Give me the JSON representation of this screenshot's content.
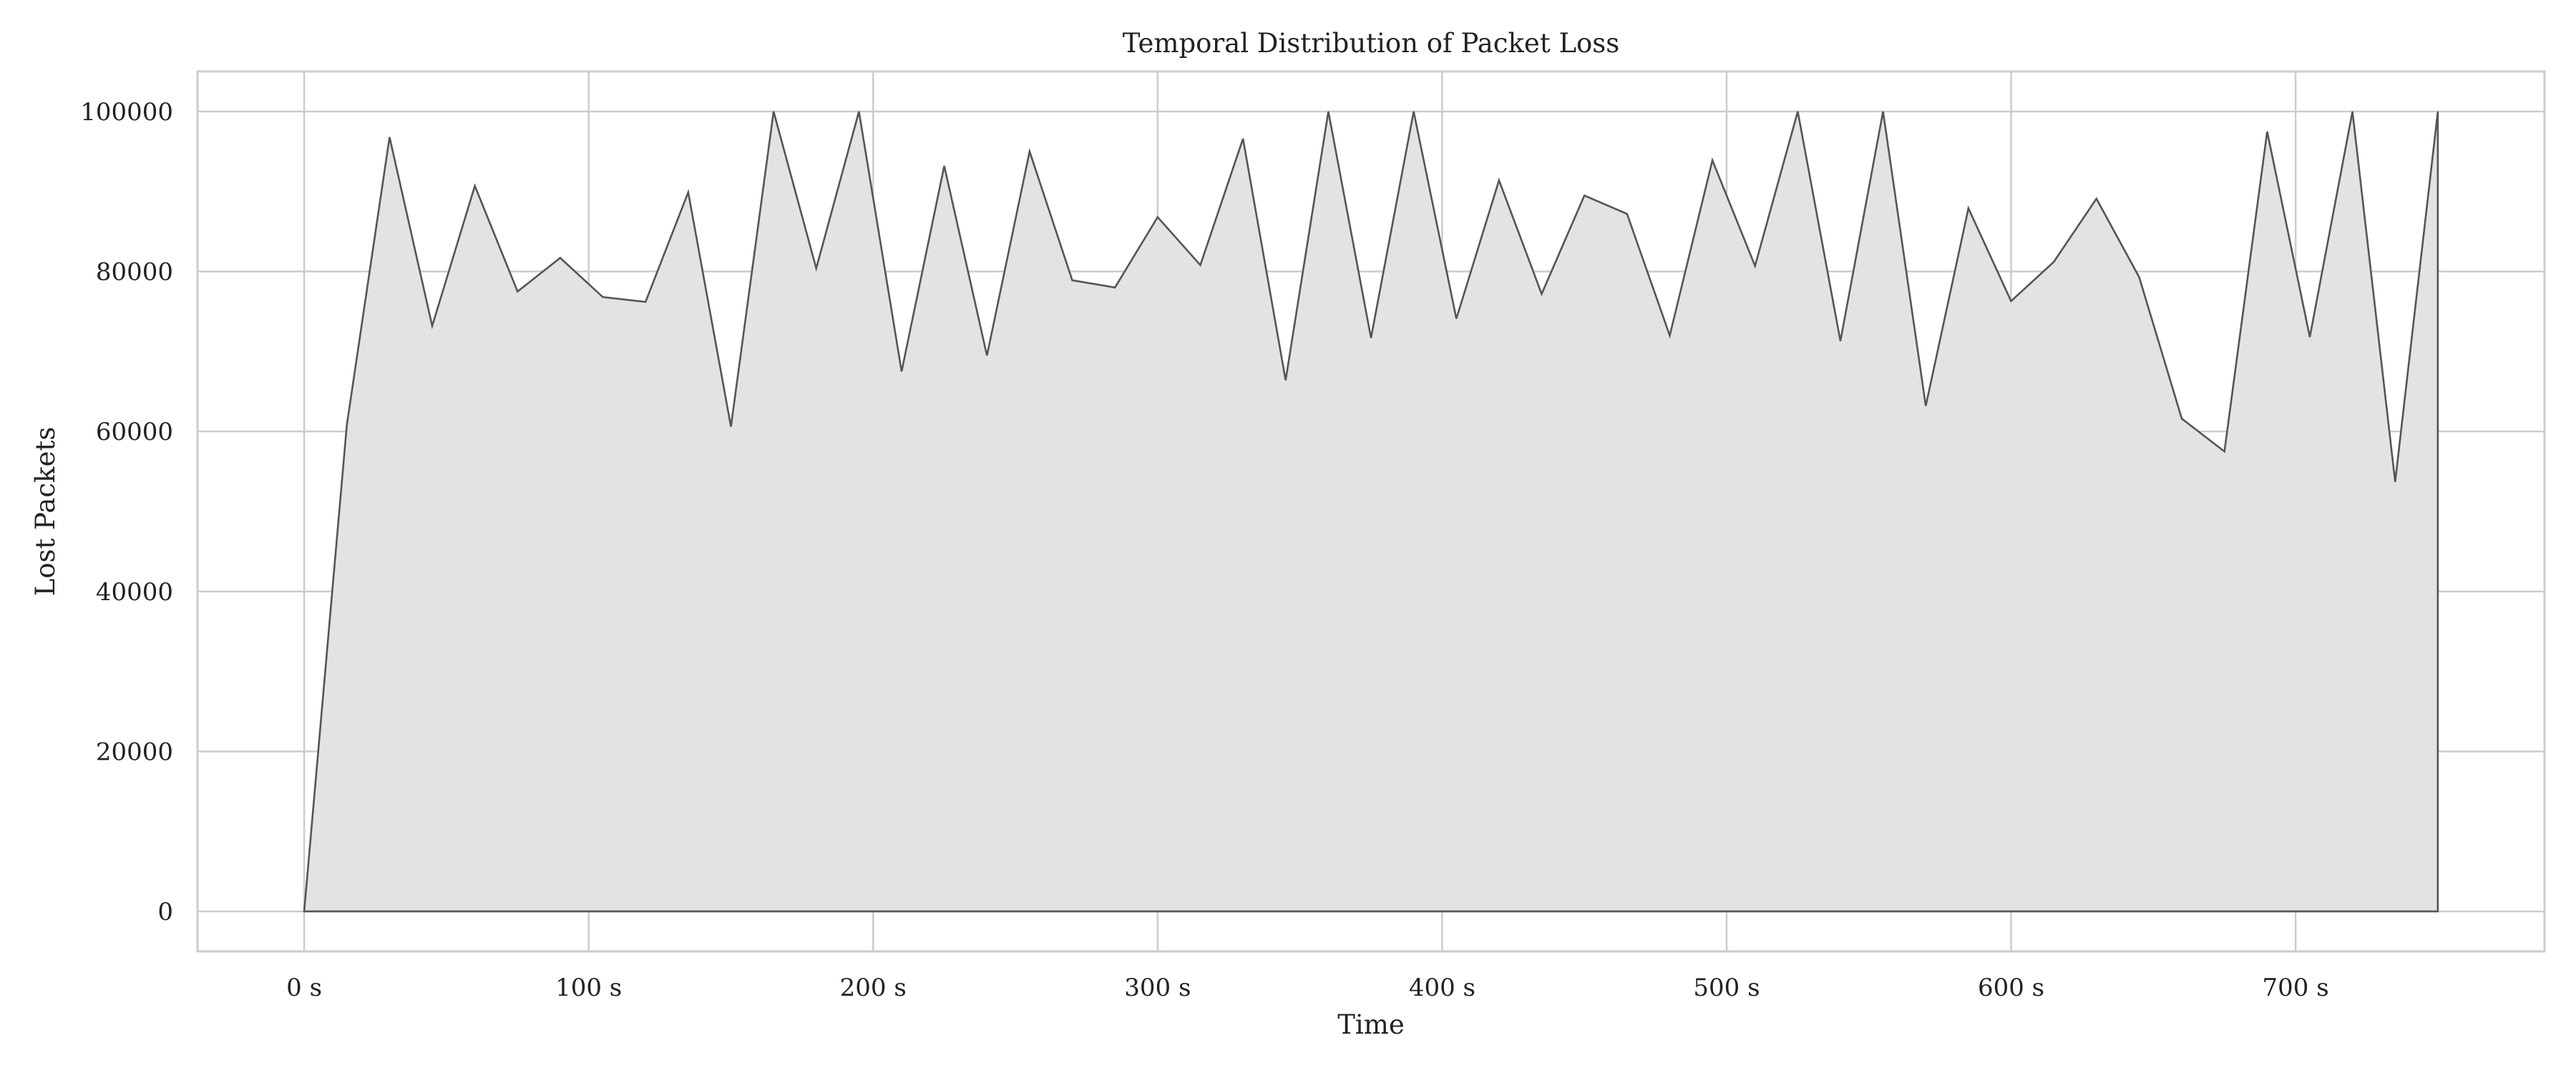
{
  "chart_data": {
    "type": "area",
    "title": "Temporal Distribution of Packet Loss",
    "xlabel": "Time",
    "ylabel": "Lost Packets",
    "x_unit": "s",
    "xlim": [
      -37.5,
      787.5
    ],
    "ylim": [
      -5000,
      105000
    ],
    "x_ticks": [
      0,
      100,
      200,
      300,
      400,
      500,
      600,
      700
    ],
    "x_tick_labels": [
      "0 s",
      "100 s",
      "200 s",
      "300 s",
      "400 s",
      "500 s",
      "600 s",
      "700 s"
    ],
    "y_ticks": [
      0,
      20000,
      40000,
      60000,
      80000,
      100000
    ],
    "y_tick_labels": [
      "0",
      "20000",
      "40000",
      "60000",
      "80000",
      "100000"
    ],
    "grid": true,
    "line_color": "#555555",
    "fill_color": "#e3e3e3",
    "x": [
      0,
      15,
      30,
      45,
      60,
      75,
      90,
      105,
      120,
      135,
      150,
      165,
      180,
      195,
      210,
      225,
      240,
      255,
      270,
      285,
      300,
      315,
      330,
      345,
      360,
      375,
      390,
      405,
      420,
      435,
      450,
      465,
      480,
      495,
      510,
      525,
      540,
      555,
      570,
      585,
      600,
      615,
      630,
      645,
      660,
      675,
      690,
      705,
      720,
      735,
      750,
      750
    ],
    "values": [
      0,
      60800,
      96800,
      73200,
      90700,
      77500,
      81700,
      76800,
      76200,
      89900,
      60600,
      100000,
      80400,
      100000,
      67500,
      93200,
      69500,
      95000,
      78900,
      78000,
      86800,
      80800,
      96600,
      66400,
      100000,
      71700,
      100000,
      74100,
      91400,
      77200,
      89500,
      87200,
      72000,
      93900,
      80700,
      100000,
      71300,
      100000,
      63200,
      87900,
      76300,
      81200,
      89100,
      79300,
      61600,
      57500,
      97500,
      71800,
      100000,
      53700,
      100000,
      0
    ]
  }
}
